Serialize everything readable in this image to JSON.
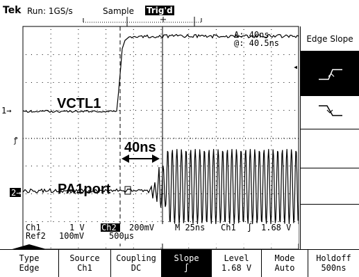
{
  "header": {
    "brand": "Tek",
    "run_status": "Run: 1GS/s",
    "acquire_mode": "Sample",
    "trigger_status": "Trig'd"
  },
  "cursor_readout": {
    "delta": "Δ: 40ns",
    "at": "@: 40.5ns"
  },
  "annotations": {
    "signal_upper": "VCTL1",
    "signal_lower": "PA1port",
    "delay": "40ns"
  },
  "channel_markers": {
    "ch1": "1→",
    "ch2": "2→",
    "trigger_level": "◂"
  },
  "settings": {
    "ch1": "Ch1",
    "ch1_scale": "1 V",
    "ch2": "Ch2",
    "ch2_scale": "200mV",
    "timebase": "M 25ns",
    "trig_source": "Ch1",
    "trig_slope": "∫",
    "trig_level": "1.68 V",
    "ref2": "Ref2",
    "ref2_scale": "100mV",
    "ref2_time": "500µs"
  },
  "side_menu": {
    "title": "Edge Slope",
    "options": [
      "rising-slope-icon",
      "falling-slope-icon"
    ],
    "selected": "rising-slope-icon"
  },
  "bottom_menu": [
    {
      "title": "Type",
      "value": "Edge"
    },
    {
      "title": "Source",
      "value": "Ch1"
    },
    {
      "title": "Coupling",
      "value": "DC"
    },
    {
      "title": "Slope",
      "value": "∫"
    },
    {
      "title": "Level",
      "value": "1.68 V"
    },
    {
      "title": "Mode",
      "value": "Auto"
    },
    {
      "title": "Holdoff",
      "value": "500ns"
    }
  ],
  "colors": {
    "background": "#ffffff",
    "trace": "#000000",
    "active_button": "#000000"
  }
}
